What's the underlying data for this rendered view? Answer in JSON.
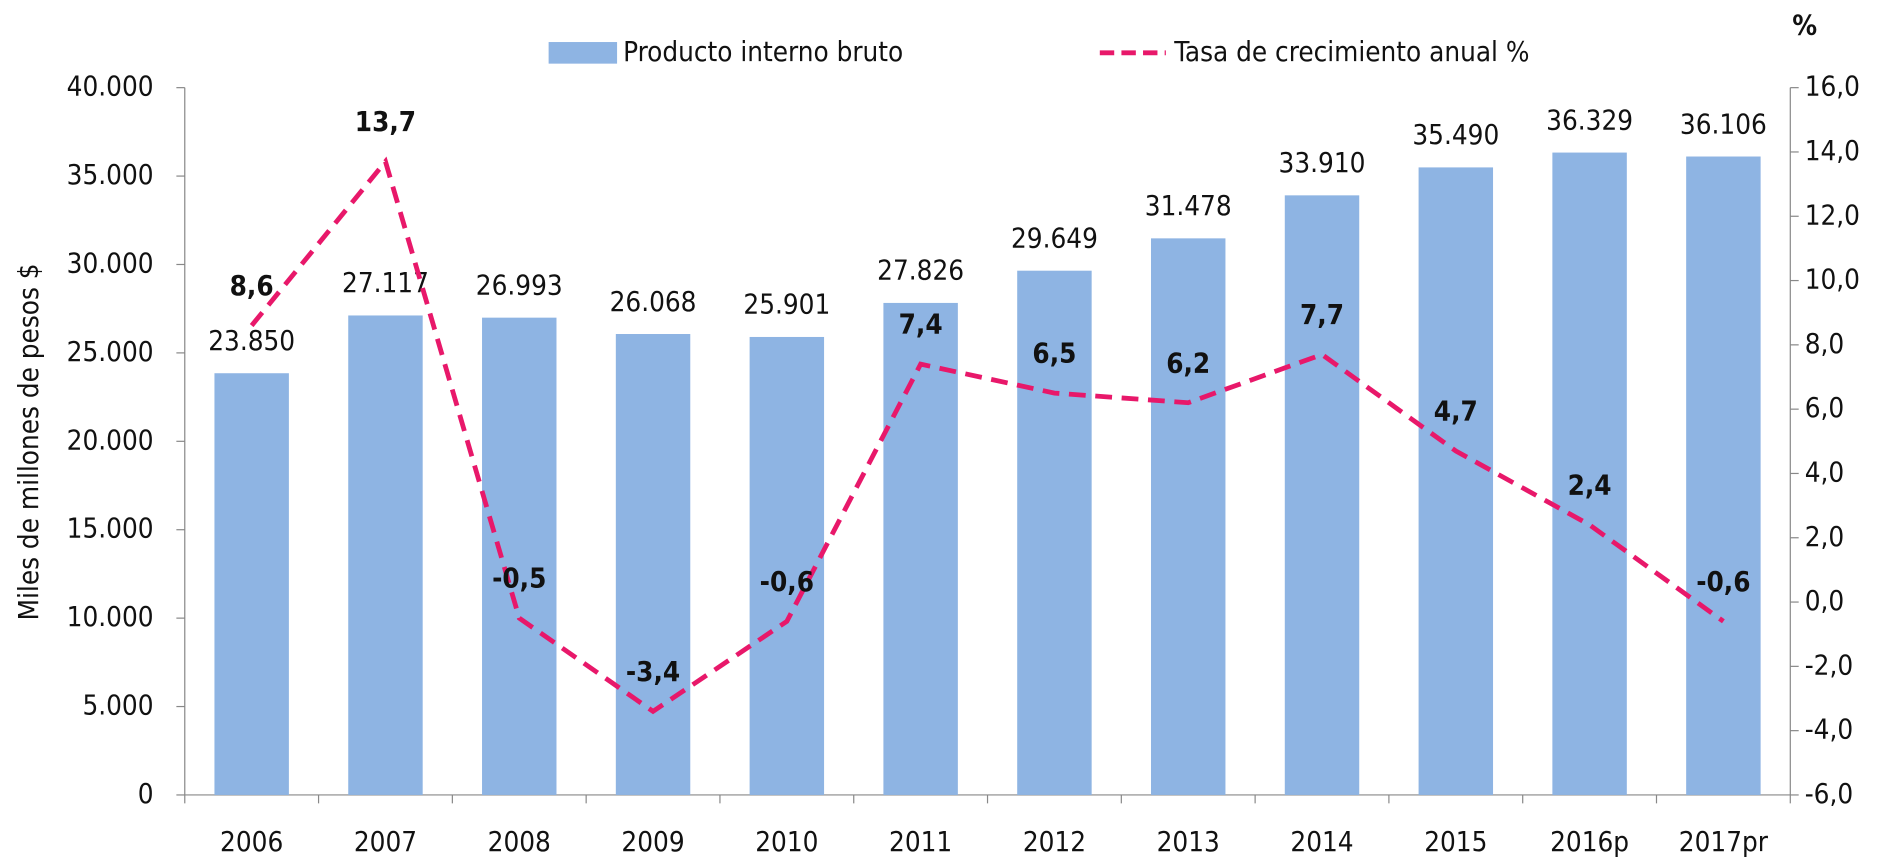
{
  "chart_data": {
    "type": "bar_line",
    "categories": [
      "2006",
      "2007",
      "2008",
      "2009",
      "2010",
      "2011",
      "2012",
      "2013",
      "2014",
      "2015",
      "2016p",
      "2017pr"
    ],
    "series": [
      {
        "name": "Producto interno bruto",
        "type": "bar",
        "color": "#8eb4e3",
        "values": [
          23850,
          27117,
          26993,
          26068,
          25901,
          27826,
          29649,
          31478,
          33910,
          35490,
          36329,
          36106
        ],
        "value_labels": [
          "23.850",
          "27.117",
          "26.993",
          "26.068",
          "25.901",
          "27.826",
          "29.649",
          "31.478",
          "33.910",
          "35.490",
          "36.329",
          "36.106"
        ]
      },
      {
        "name": "Tasa de crecimiento anual %",
        "type": "line",
        "axis": "y2",
        "color": "#e8186a",
        "dashed": true,
        "values": [
          8.6,
          13.7,
          -0.5,
          -3.4,
          -0.6,
          7.4,
          6.5,
          6.2,
          7.7,
          4.7,
          2.4,
          -0.6
        ],
        "value_labels": [
          "8,6",
          "13,7",
          "-0,5",
          "-3,4",
          "-0,6",
          "7,4",
          "6,5",
          "6,2",
          "7,7",
          "4,7",
          "2,4",
          "-0,6"
        ]
      }
    ],
    "y_label": "Miles de millones de pesos $",
    "y2_label": "%",
    "ylim": [
      0,
      40000
    ],
    "yticks": [
      0,
      {
        "value": 5000,
        "label": "5.000"
      },
      {
        "value": 10000,
        "label": "10.000"
      },
      {
        "value": 15000,
        "label": "15.000"
      },
      {
        "value": 20000,
        "label": "20.000"
      },
      {
        "value": 25000,
        "label": "25.000"
      },
      {
        "value": 30000,
        "label": "30.000"
      },
      {
        "value": 35000,
        "label": "35.000"
      },
      {
        "value": 40000,
        "label": "40.000"
      }
    ],
    "y2lim": [
      -6,
      16
    ],
    "y2ticks": [
      {
        "value": -6,
        "label": "-6,0"
      },
      {
        "value": -4,
        "label": "-4,0"
      },
      {
        "value": -2,
        "label": "-2,0"
      },
      {
        "value": 0,
        "label": "0,0"
      },
      {
        "value": 2,
        "label": "2,0"
      },
      {
        "value": 4,
        "label": "4,0"
      },
      {
        "value": 6,
        "label": "6,0"
      },
      {
        "value": 8,
        "label": "8,0"
      },
      {
        "value": 10,
        "label": "10,0"
      },
      {
        "value": 12,
        "label": "12,0"
      },
      {
        "value": 14,
        "label": "14,0"
      },
      {
        "value": 16,
        "label": "16,0"
      }
    ],
    "legend": "top"
  }
}
